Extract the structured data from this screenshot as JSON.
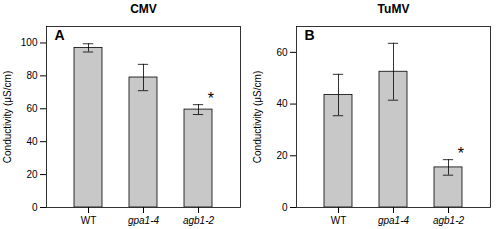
{
  "chart_data": [
    {
      "type": "bar",
      "title": "CMV",
      "categories": [
        "WT",
        "gpa1-4",
        "agb1-2"
      ],
      "values": [
        97,
        79,
        59.5
      ],
      "errors": [
        2.5,
        8,
        3
      ],
      "color": "#c8c8c8",
      "ylabel": "Conductivity (μS/cm)",
      "ylim": [
        0,
        110
      ],
      "yticks": [
        0,
        20,
        40,
        60,
        80,
        100
      ],
      "grid": false,
      "annotations": [
        {
          "text": "A"
        },
        {
          "text": "*",
          "category": "agb1-2"
        }
      ]
    },
    {
      "type": "bar",
      "title": "TuMV",
      "categories": [
        "WT",
        "gpa1-4",
        "agb1-2"
      ],
      "values": [
        43.5,
        52.5,
        15.5
      ],
      "errors": [
        8,
        11,
        3
      ],
      "color": "#c8c8c8",
      "ylabel": "Conductivity (μS/cm)",
      "ylim": [
        0,
        70
      ],
      "yticks": [
        0,
        20,
        40,
        60
      ],
      "grid": false,
      "annotations": [
        {
          "text": "B"
        },
        {
          "text": "*",
          "category": "agb1-2"
        }
      ]
    }
  ]
}
